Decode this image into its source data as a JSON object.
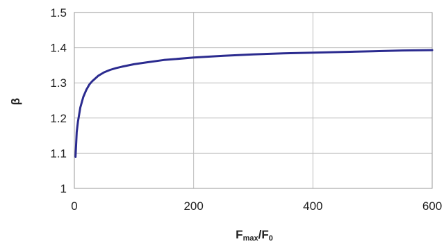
{
  "chart_data": {
    "type": "line",
    "title": "",
    "xlabel": "F",
    "xlabel_sub1": "max",
    "xlabel_mid": "/F",
    "xlabel_sub2": "0",
    "ylabel": "β",
    "xlim": [
      0,
      600
    ],
    "ylim": [
      1,
      1.5
    ],
    "xticks": [
      0,
      200,
      400,
      600
    ],
    "yticks": [
      1,
      1.1,
      1.2,
      1.3,
      1.4,
      1.5
    ],
    "grid": true,
    "line_color": "#2b2b8f",
    "series": [
      {
        "x": [
          2,
          4,
          6,
          8,
          10,
          15,
          20,
          25,
          30,
          40,
          50,
          60,
          70,
          80,
          100,
          120,
          150,
          200,
          250,
          300,
          350,
          400,
          450,
          500,
          550,
          600
        ],
        "y": [
          1.09,
          1.16,
          1.19,
          1.21,
          1.23,
          1.26,
          1.28,
          1.295,
          1.305,
          1.32,
          1.33,
          1.337,
          1.342,
          1.346,
          1.353,
          1.358,
          1.365,
          1.372,
          1.377,
          1.381,
          1.384,
          1.386,
          1.388,
          1.39,
          1.392,
          1.393
        ]
      }
    ]
  }
}
